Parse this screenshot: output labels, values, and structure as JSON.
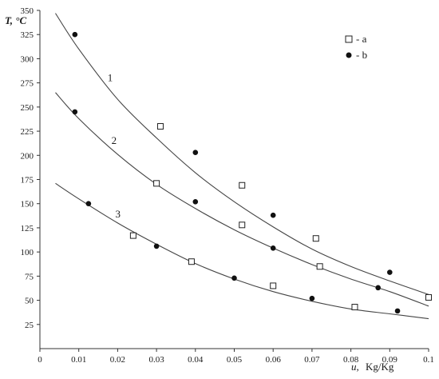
{
  "chart_data": {
    "type": "scatter",
    "ylabel": "T, °C",
    "xlabel_var": "u,",
    "xlabel_unit": "Kg/Kg",
    "xlim": [
      0,
      0.1
    ],
    "ylim": [
      0,
      350
    ],
    "x_ticks": [
      "0",
      "0.01",
      "0.02",
      "0.03",
      "0.04",
      "0.05",
      "0.06",
      "0.07",
      "0.08",
      "0.09",
      "0.1"
    ],
    "y_ticks": [
      "25",
      "50",
      "75",
      "100",
      "125",
      "150",
      "175",
      "200",
      "225",
      "250",
      "275",
      "300",
      "325",
      "350"
    ],
    "legend_position": "top-right",
    "legend": [
      {
        "marker": "open-square",
        "label": "- a"
      },
      {
        "marker": "filled-circle",
        "label": "- b"
      }
    ],
    "curves": [
      {
        "label": "1",
        "x": [
          0.004,
          0.01,
          0.02,
          0.03,
          0.04,
          0.05,
          0.06,
          0.07,
          0.08,
          0.09,
          0.1
        ],
        "y": [
          347,
          310,
          258,
          218,
          182,
          152,
          126,
          103,
          85,
          70,
          56
        ]
      },
      {
        "label": "2",
        "x": [
          0.004,
          0.01,
          0.02,
          0.03,
          0.04,
          0.05,
          0.06,
          0.07,
          0.08,
          0.09,
          0.1
        ],
        "y": [
          265,
          238,
          201,
          170,
          145,
          123,
          104,
          87,
          72,
          59,
          44
        ]
      },
      {
        "label": "3",
        "x": [
          0.004,
          0.01,
          0.02,
          0.03,
          0.04,
          0.05,
          0.06,
          0.07,
          0.08,
          0.09,
          0.1
        ],
        "y": [
          171,
          155,
          130,
          108,
          88,
          72,
          59,
          49,
          41,
          36,
          31
        ]
      }
    ],
    "series": [
      {
        "marker": "open-square",
        "points": [
          [
            0.031,
            230
          ],
          [
            0.052,
            169
          ],
          [
            0.071,
            114
          ],
          [
            0.03,
            171
          ],
          [
            0.052,
            128
          ],
          [
            0.072,
            85
          ],
          [
            0.024,
            117
          ],
          [
            0.039,
            90
          ],
          [
            0.06,
            65
          ],
          [
            0.081,
            43
          ],
          [
            0.1,
            53
          ]
        ]
      },
      {
        "marker": "filled-circle",
        "points": [
          [
            0.009,
            325
          ],
          [
            0.04,
            203
          ],
          [
            0.06,
            138
          ],
          [
            0.09,
            79
          ],
          [
            0.009,
            245
          ],
          [
            0.04,
            152
          ],
          [
            0.06,
            104
          ],
          [
            0.087,
            63
          ],
          [
            0.0125,
            150
          ],
          [
            0.03,
            106
          ],
          [
            0.05,
            73
          ],
          [
            0.07,
            52
          ],
          [
            0.092,
            39
          ]
        ]
      }
    ]
  }
}
